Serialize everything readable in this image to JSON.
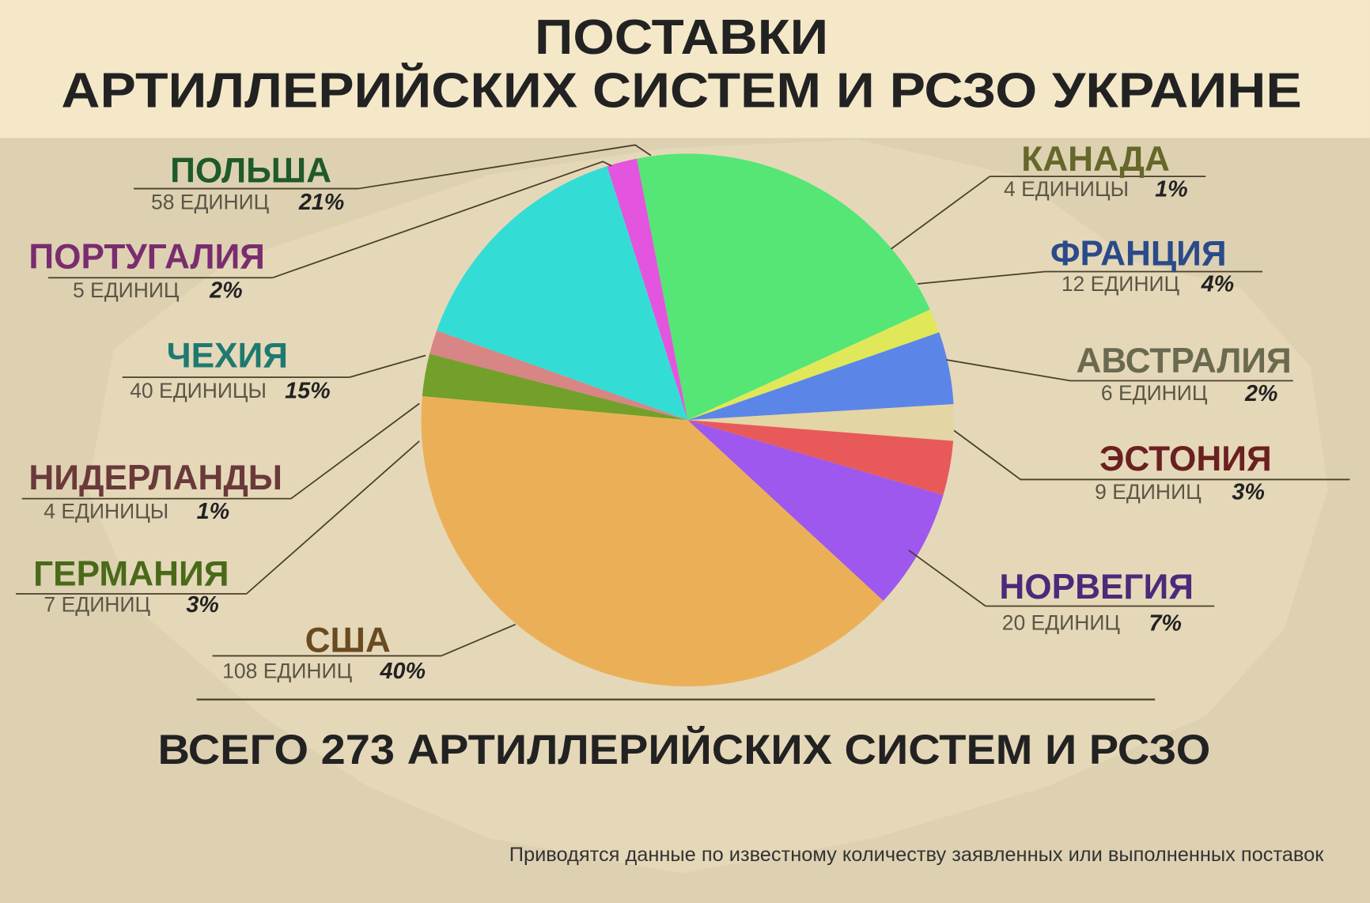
{
  "chart_data": {
    "type": "pie",
    "title": [
      "ПОСТАВКИ",
      "АРТИЛЛЕРИЙСКИХ СИСТЕМ И РСЗО УКРАИНЕ"
    ],
    "categories": [
      "ПОЛЬША",
      "КАНАДА",
      "ФРАНЦИЯ",
      "АВСТРАЛИЯ",
      "ЭСТОНИЯ",
      "НОРВЕГИЯ",
      "США",
      "ГЕРМАНИЯ",
      "НИДЕРЛАНДЫ",
      "ЧЕХИЯ",
      "ПОРТУГАЛИЯ"
    ],
    "values": [
      58,
      4,
      12,
      6,
      9,
      20,
      108,
      7,
      4,
      40,
      5
    ],
    "value_labels": [
      "58 ЕДИНИЦ",
      "4 ЕДИНИЦЫ",
      "12 ЕДИНИЦ",
      "6 ЕДИНИЦ",
      "9 ЕДИНИЦ",
      "20 ЕДИНИЦ",
      "108 ЕДИНИЦ",
      "7 ЕДИНИЦ",
      "4 ЕДИНИЦЫ",
      "40 ЕДИНИЦЫ",
      "5 ЕДИНИЦ"
    ],
    "percent_labels": [
      "21%",
      "1%",
      "4%",
      "2%",
      "3%",
      "7%",
      "40%",
      "3%",
      "1%",
      "15%",
      "2%"
    ],
    "colors": [
      "#55e675",
      "#e0e85a",
      "#5b86e8",
      "#e4d5a4",
      "#e85a5a",
      "#9e58ee",
      "#ebb057",
      "#72a02a",
      "#d88585",
      "#33ddd5",
      "#e355de"
    ],
    "label_colors": [
      "#1f5a2b",
      "#66672a",
      "#2a4a8a",
      "#6a6a50",
      "#6a2020",
      "#4a2a7a",
      "#6a4a20",
      "#4a6a1a",
      "#6a3a3a",
      "#1e7a70",
      "#7a2d6e"
    ],
    "total_text": "ВСЕГО 273 АРТИЛЛЕРИЙСКИХ СИСТЕМ И РСЗО",
    "note": "Приводятся данные по известному количеству заявленных или выполненных поставок"
  }
}
